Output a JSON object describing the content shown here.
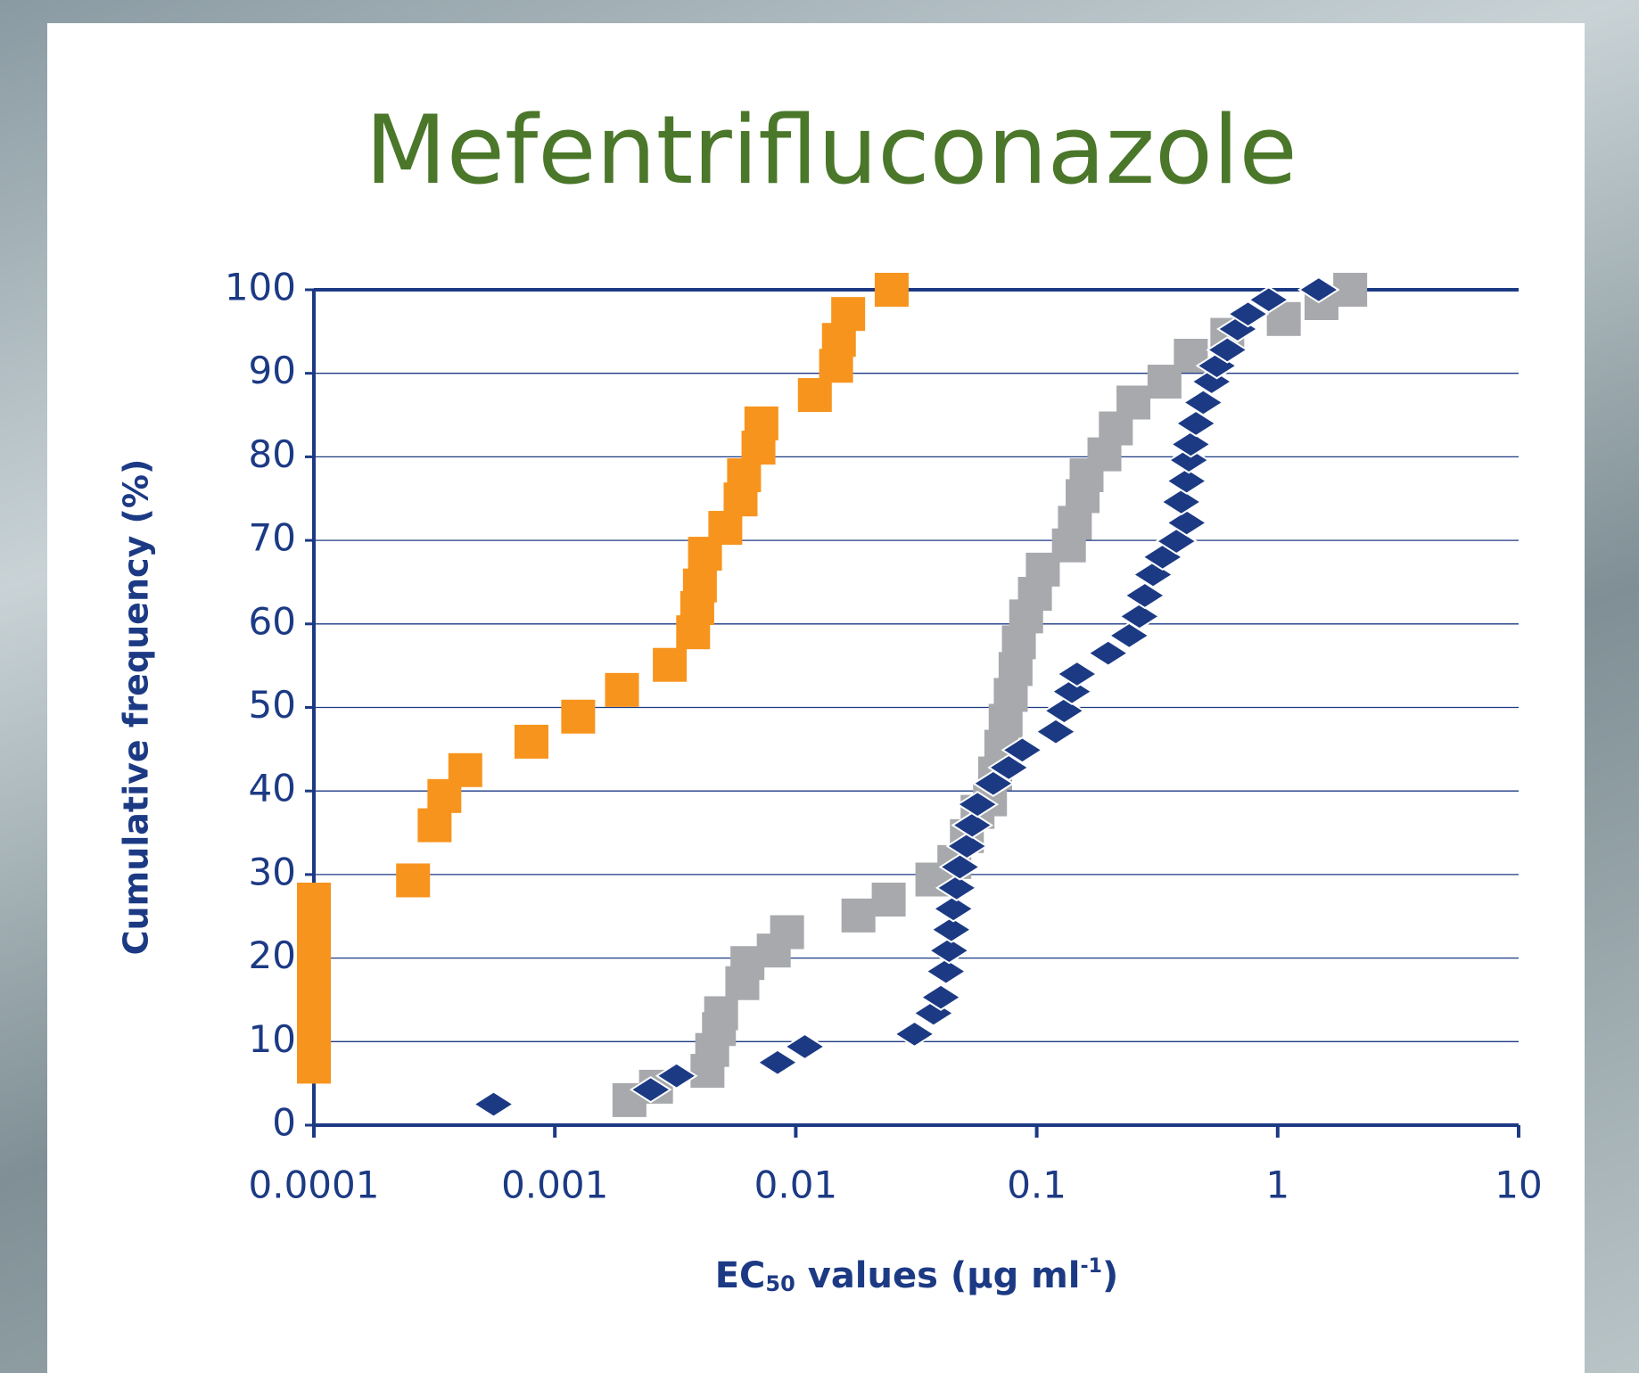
{
  "chart_data": {
    "type": "scatter",
    "title": "Mefentrifluconazole",
    "xlabel": [
      "EC",
      "50",
      " values (µg ml",
      "-1",
      ")"
    ],
    "ylabel": "Cumulative frequency (%)",
    "xscale": "log",
    "xlim": [
      0.0001,
      10
    ],
    "xticks": [
      0.0001,
      0.001,
      0.01,
      0.1,
      1,
      10
    ],
    "ylim": [
      0,
      100
    ],
    "yticks": [
      0,
      10,
      20,
      30,
      40,
      50,
      60,
      70,
      80,
      90,
      100
    ],
    "grid": true,
    "series": [
      {
        "color": "#f7941d",
        "marker": "square",
        "x": [
          0.0001,
          0.0001,
          0.0001,
          0.0001,
          0.0001,
          0.0001,
          0.0001,
          0.0001,
          0.0001,
          0.0001,
          0.0001,
          0.000258,
          0.000317,
          0.000348,
          0.000425,
          0.0008,
          0.00125,
          0.0019,
          0.003,
          0.00375,
          0.0039,
          0.004,
          0.0042,
          0.0051,
          0.0059,
          0.0061,
          0.007,
          0.0072,
          0.012,
          0.0147,
          0.0151,
          0.0165,
          0.025
        ],
        "values": [
          7,
          9,
          11,
          13,
          15,
          17,
          19,
          21,
          23,
          25,
          27,
          29.3,
          35.9,
          39.4,
          42.5,
          45.9,
          48.9,
          52.1,
          55.1,
          59,
          61.9,
          64.6,
          68.4,
          71.5,
          74.9,
          77.8,
          81.1,
          84,
          87.4,
          90.9,
          94,
          97.1,
          100
        ]
      },
      {
        "color": "#a7a9ac",
        "marker": "square",
        "x": [
          0.00204,
          0.00263,
          0.0043,
          0.0045,
          0.0048,
          0.0049,
          0.006,
          0.0063,
          0.0081,
          0.0092,
          0.0182,
          0.0243,
          0.0369,
          0.0455,
          0.0513,
          0.0568,
          0.064,
          0.0672,
          0.0713,
          0.0743,
          0.078,
          0.0817,
          0.0843,
          0.0904,
          0.0983,
          0.106,
          0.136,
          0.144,
          0.155,
          0.161,
          0.191,
          0.213,
          0.252,
          0.339,
          0.436,
          0.618,
          1.06,
          1.52,
          2.0
        ],
        "values": [
          3,
          4.6,
          6.5,
          9,
          11.5,
          13.4,
          17,
          19.4,
          20.9,
          23.1,
          25.1,
          27,
          29.4,
          31.5,
          34.6,
          37.5,
          39,
          42.1,
          45.3,
          48.4,
          51.5,
          54.6,
          57.8,
          60.9,
          63.6,
          66.5,
          69.4,
          72.1,
          75.3,
          77.8,
          80.3,
          83.4,
          86.5,
          89,
          92.1,
          94.6,
          96.5,
          98.4,
          100
        ]
      },
      {
        "color": "#1c3a84",
        "marker": "diamond",
        "x": [
          0.000557,
          0.0025,
          0.0032,
          0.0084,
          0.0109,
          0.0311,
          0.0373,
          0.04,
          0.042,
          0.0433,
          0.0442,
          0.0451,
          0.0465,
          0.048,
          0.0513,
          0.054,
          0.0568,
          0.066,
          0.0765,
          0.0871,
          0.12,
          0.13,
          0.14,
          0.147,
          0.198,
          0.242,
          0.267,
          0.281,
          0.304,
          0.333,
          0.38,
          0.419,
          0.398,
          0.419,
          0.428,
          0.436,
          0.458,
          0.491,
          0.532,
          0.559,
          0.618,
          0.682,
          0.753,
          0.918,
          1.48
        ],
        "values": [
          2.5,
          4.25,
          5.9,
          7.5,
          9.4,
          10.9,
          13.4,
          15.3,
          18.4,
          20.9,
          23.4,
          25.9,
          28.4,
          30.9,
          33.4,
          35.9,
          38.4,
          40.9,
          42.8,
          44.9,
          47.1,
          49.6,
          51.9,
          54,
          56.5,
          58.6,
          60.9,
          63.4,
          65.9,
          68,
          69.9,
          72.1,
          74.6,
          77.1,
          79.6,
          81.5,
          84,
          86.5,
          89,
          90.9,
          92.8,
          95.3,
          97.1,
          98.8,
          100
        ]
      }
    ]
  }
}
